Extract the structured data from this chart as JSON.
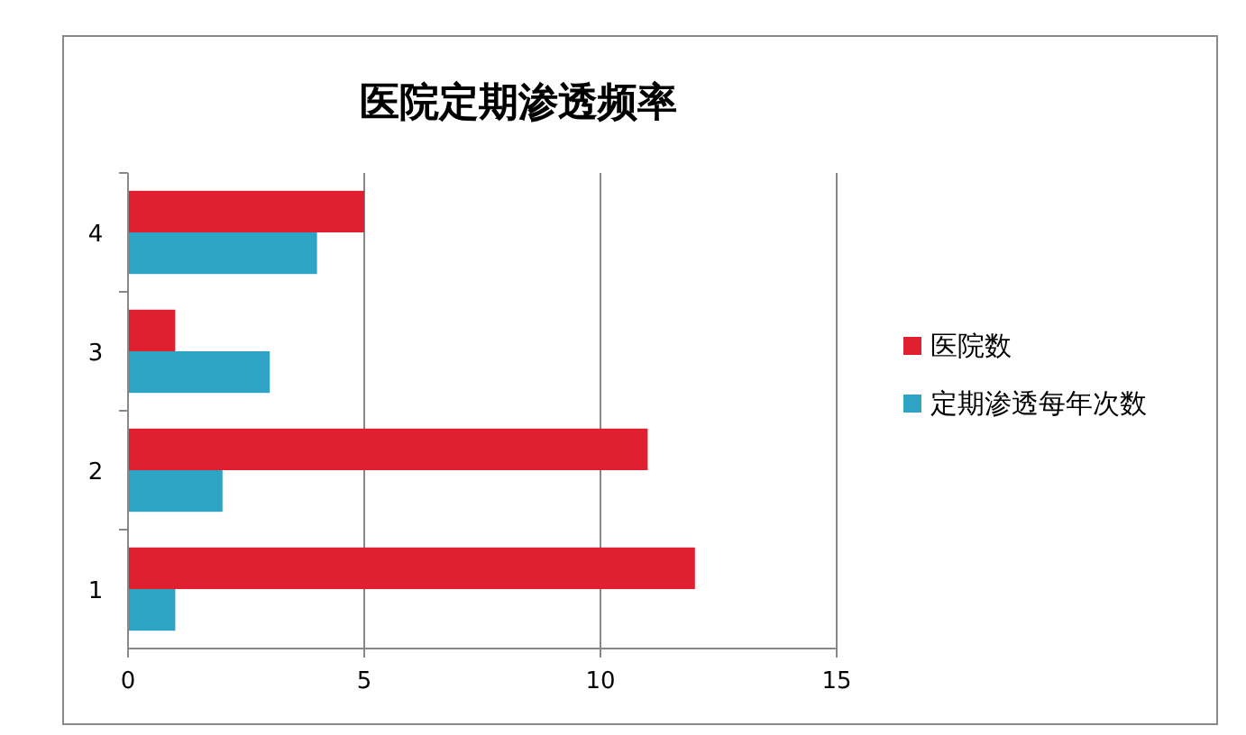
{
  "chart_data": {
    "type": "bar",
    "orientation": "horizontal",
    "title": "医院定期渗透频率",
    "categories": [
      "4",
      "3",
      "2",
      "1"
    ],
    "series": [
      {
        "name": "医院数",
        "color": "#e02030",
        "values": [
          5,
          1,
          11,
          12
        ]
      },
      {
        "name": "定期渗透每年次数",
        "color": "#2ea3c3",
        "values": [
          4,
          3,
          2,
          1
        ]
      }
    ],
    "xlim": [
      0,
      15
    ],
    "xticks": [
      0,
      5,
      10,
      15
    ],
    "grid": "x",
    "legend": "right"
  }
}
